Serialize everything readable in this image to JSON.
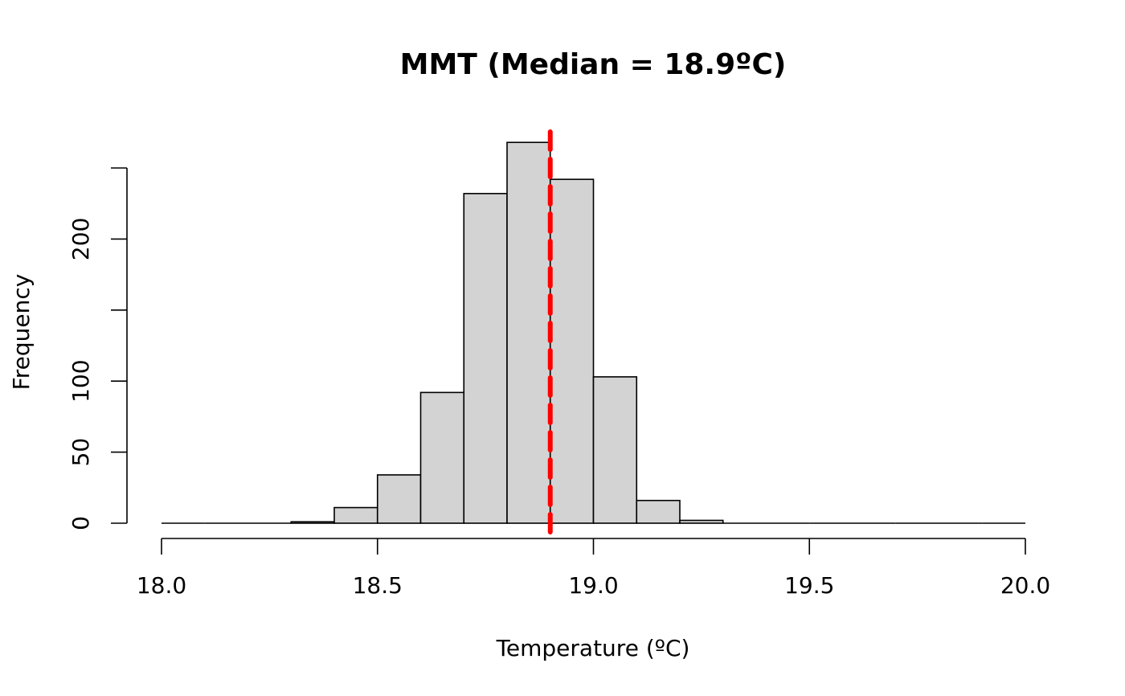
{
  "chart_data": {
    "type": "bar",
    "subtype": "histogram",
    "title": "MMT (Median = 18.9ºC)",
    "xlabel": "Temperature (ºC)",
    "ylabel": "Frequency",
    "xlim": [
      18.0,
      20.0
    ],
    "ylim": [
      0,
      250
    ],
    "x_ticks": [
      18.0,
      18.5,
      19.0,
      19.5,
      20.0
    ],
    "x_tick_labels": [
      "18.0",
      "18.5",
      "19.0",
      "19.5",
      "20.0"
    ],
    "y_ticks": [
      0,
      50,
      100,
      150,
      200,
      250
    ],
    "y_tick_labels": [
      "0",
      "50",
      "100",
      "",
      "200",
      ""
    ],
    "bin_width": 0.1,
    "bin_starts": [
      18.0,
      18.1,
      18.2,
      18.3,
      18.4,
      18.5,
      18.6,
      18.7,
      18.8,
      18.9,
      19.0,
      19.1,
      19.2,
      19.3,
      19.4,
      19.5,
      19.6,
      19.7,
      19.8,
      19.9
    ],
    "values": [
      0,
      0,
      0,
      1,
      11,
      34,
      92,
      232,
      268,
      242,
      103,
      16,
      2,
      0,
      0,
      0,
      0,
      0,
      0,
      0
    ],
    "bar_fill": "#d3d3d3",
    "bar_stroke": "#000000",
    "median": 18.9,
    "median_line": {
      "color": "#ff0000",
      "style": "dashed"
    },
    "grid": false,
    "legend": "none"
  }
}
